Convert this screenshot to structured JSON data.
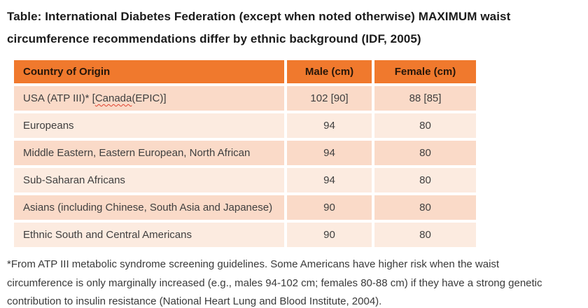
{
  "title": {
    "line1": "Table: International Diabetes Federation (except when noted otherwise) MAXIMUM waist",
    "line2": "circumference recommendations differ by ethnic background (IDF, 2005)"
  },
  "table": {
    "columns": [
      "Country of Origin",
      "Male (cm)",
      "Female (cm)"
    ],
    "rows": [
      {
        "country_prefix": "USA (ATP III)* [",
        "country_misspelled": "Canada",
        "country_suffix": " (EPIC)]",
        "male": "102 [90]",
        "female": "88 [85]"
      },
      {
        "country": "Europeans",
        "male": "94",
        "female": "80"
      },
      {
        "country": "Middle Eastern, Eastern European, North African",
        "male": "94",
        "female": "80"
      },
      {
        "country": "Sub-Saharan Africans",
        "male": "94",
        "female": "80"
      },
      {
        "country": "Asians (including Chinese, South Asia and Japanese)",
        "male": "90",
        "female": "80"
      },
      {
        "country": "Ethnic South and Central Americans",
        "male": "90",
        "female": "80"
      }
    ]
  },
  "footnote": {
    "line1": "*From ATP III metabolic syndrome screening guidelines. Some Americans have higher risk when the waist",
    "line2": "circumference is only marginally increased (e.g., males 94-102 cm; females 80-88 cm) if they have a strong genetic",
    "line3": "contribution to insulin resistance (National Heart Lung and Blood Institute, 2004)."
  },
  "colors": {
    "header_bg": "#F0792D",
    "row_band_dark": "#FADAC8",
    "row_band_light": "#FCEBE0",
    "header_text": "#26160a",
    "body_text": "#3f3f3f",
    "spellcheck_underline": "#E0432F"
  }
}
